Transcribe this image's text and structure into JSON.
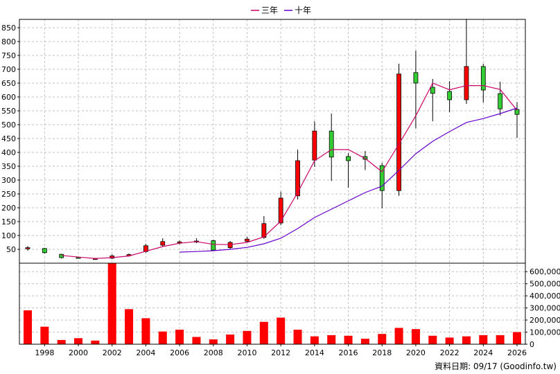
{
  "chart_data": {
    "type": "candlestick",
    "legend": [
      {
        "name": "三年",
        "color": "#cc0066"
      },
      {
        "name": "十年",
        "color": "#6600cc"
      }
    ],
    "legend_position": "top-center",
    "grid": true,
    "up_color": "#ff0000",
    "down_color": "#33cc33",
    "volume_color": "#ff0000",
    "years": [
      1997,
      1998,
      1999,
      2000,
      2001,
      2002,
      2003,
      2004,
      2005,
      2006,
      2007,
      2008,
      2009,
      2010,
      2011,
      2012,
      2013,
      2014,
      2015,
      2016,
      2017,
      2018,
      2019,
      2020,
      2021,
      2022,
      2023,
      2024,
      2025,
      2026
    ],
    "x_tick_labels": [
      "1998",
      "2000",
      "2002",
      "2004",
      "2006",
      "2008",
      "2010",
      "2012",
      "2014",
      "2016",
      "2018",
      "2020",
      "2022",
      "2024",
      "2026"
    ],
    "price_axis": {
      "ticks": [
        50,
        100,
        150,
        200,
        250,
        300,
        350,
        400,
        450,
        500,
        550,
        600,
        650,
        700,
        750,
        800,
        850
      ],
      "range": [
        0,
        880
      ]
    },
    "volume_axis": {
      "ticks": [
        0,
        100000,
        200000,
        300000,
        400000,
        500000,
        600000
      ],
      "tick_labels": [
        "0",
        "100,000",
        "200,000",
        "300,000",
        "400,000",
        "500,000",
        "600,000"
      ],
      "range": [
        0,
        670000
      ]
    },
    "candles": [
      {
        "year": 1997,
        "open": 52,
        "close": 56,
        "high": 62,
        "low": 45
      },
      {
        "year": 1998,
        "open": 53,
        "close": 38,
        "high": 55,
        "low": 35
      },
      {
        "year": 1999,
        "open": 32,
        "close": 20,
        "high": 34,
        "low": 17
      },
      {
        "year": 2000,
        "open": 21,
        "close": 20,
        "high": 24,
        "low": 16
      },
      {
        "year": 2001,
        "open": 16,
        "close": 17,
        "high": 19,
        "low": 12
      },
      {
        "year": 2002,
        "open": 18,
        "close": 26,
        "high": 32,
        "low": 15
      },
      {
        "year": 2003,
        "open": 27,
        "close": 31,
        "high": 35,
        "low": 24
      },
      {
        "year": 2004,
        "open": 42,
        "close": 63,
        "high": 70,
        "low": 38
      },
      {
        "year": 2005,
        "open": 65,
        "close": 78,
        "high": 90,
        "low": 60
      },
      {
        "year": 2006,
        "open": 76,
        "close": 77,
        "high": 82,
        "low": 68
      },
      {
        "year": 2007,
        "open": 78,
        "close": 80,
        "high": 90,
        "low": 72
      },
      {
        "year": 2008,
        "open": 81,
        "close": 47,
        "high": 85,
        "low": 44
      },
      {
        "year": 2009,
        "open": 56,
        "close": 75,
        "high": 80,
        "low": 50
      },
      {
        "year": 2010,
        "open": 79,
        "close": 87,
        "high": 95,
        "low": 74
      },
      {
        "year": 2011,
        "open": 93,
        "close": 143,
        "high": 170,
        "low": 88
      },
      {
        "year": 2012,
        "open": 145,
        "close": 235,
        "high": 258,
        "low": 137
      },
      {
        "year": 2013,
        "open": 243,
        "close": 370,
        "high": 410,
        "low": 230
      },
      {
        "year": 2014,
        "open": 372,
        "close": 477,
        "high": 512,
        "low": 348
      },
      {
        "year": 2015,
        "open": 477,
        "close": 383,
        "high": 540,
        "low": 297
      },
      {
        "year": 2016,
        "open": 385,
        "close": 370,
        "high": 397,
        "low": 272
      },
      {
        "year": 2017,
        "open": 385,
        "close": 375,
        "high": 405,
        "low": 336
      },
      {
        "year": 2018,
        "open": 352,
        "close": 262,
        "high": 362,
        "low": 198
      },
      {
        "year": 2019,
        "open": 262,
        "close": 683,
        "high": 720,
        "low": 243
      },
      {
        "year": 2020,
        "open": 688,
        "close": 650,
        "high": 767,
        "low": 487
      },
      {
        "year": 2021,
        "open": 635,
        "close": 613,
        "high": 665,
        "low": 512
      },
      {
        "year": 2022,
        "open": 620,
        "close": 590,
        "high": 657,
        "low": 545
      },
      {
        "year": 2023,
        "open": 590,
        "close": 710,
        "high": 882,
        "low": 575
      },
      {
        "year": 2024,
        "open": 710,
        "close": 625,
        "high": 720,
        "low": 580
      },
      {
        "year": 2025,
        "open": 612,
        "close": 557,
        "high": 655,
        "low": 533
      },
      {
        "year": 2026,
        "open": 555,
        "close": 537,
        "high": 582,
        "low": 452
      }
    ],
    "series": [
      {
        "name": "三年",
        "points": [
          [
            1999,
            28
          ],
          [
            2000,
            22
          ],
          [
            2001,
            17
          ],
          [
            2002,
            20
          ],
          [
            2003,
            26
          ],
          [
            2004,
            43
          ],
          [
            2005,
            60
          ],
          [
            2006,
            72
          ],
          [
            2007,
            78
          ],
          [
            2008,
            68
          ],
          [
            2009,
            67
          ],
          [
            2010,
            75
          ],
          [
            2011,
            95
          ],
          [
            2012,
            152
          ],
          [
            2013,
            255
          ],
          [
            2014,
            370
          ],
          [
            2015,
            410
          ],
          [
            2016,
            410
          ],
          [
            2017,
            378
          ],
          [
            2018,
            330
          ],
          [
            2019,
            430
          ],
          [
            2020,
            532
          ],
          [
            2021,
            650
          ],
          [
            2022,
            626
          ],
          [
            2023,
            641
          ],
          [
            2024,
            641
          ],
          [
            2025,
            627
          ],
          [
            2026,
            552
          ]
        ]
      },
      {
        "name": "十年",
        "points": [
          [
            2006,
            40
          ],
          [
            2007,
            42
          ],
          [
            2008,
            45
          ],
          [
            2009,
            50
          ],
          [
            2010,
            57
          ],
          [
            2011,
            70
          ],
          [
            2012,
            90
          ],
          [
            2013,
            125
          ],
          [
            2014,
            165
          ],
          [
            2015,
            195
          ],
          [
            2016,
            225
          ],
          [
            2017,
            255
          ],
          [
            2018,
            278
          ],
          [
            2019,
            335
          ],
          [
            2020,
            395
          ],
          [
            2021,
            440
          ],
          [
            2022,
            475
          ],
          [
            2023,
            508
          ],
          [
            2024,
            522
          ],
          [
            2025,
            540
          ],
          [
            2026,
            560
          ]
        ]
      }
    ],
    "volume": [
      280000,
      145000,
      35000,
      50000,
      30000,
      670000,
      290000,
      215000,
      105000,
      120000,
      60000,
      40000,
      80000,
      110000,
      185000,
      220000,
      120000,
      65000,
      75000,
      70000,
      45000,
      85000,
      135000,
      125000,
      70000,
      55000,
      65000,
      75000,
      75000,
      100000
    ]
  },
  "footer": {
    "source": "資料日期: 09/17  (Goodinfo.tw)"
  }
}
